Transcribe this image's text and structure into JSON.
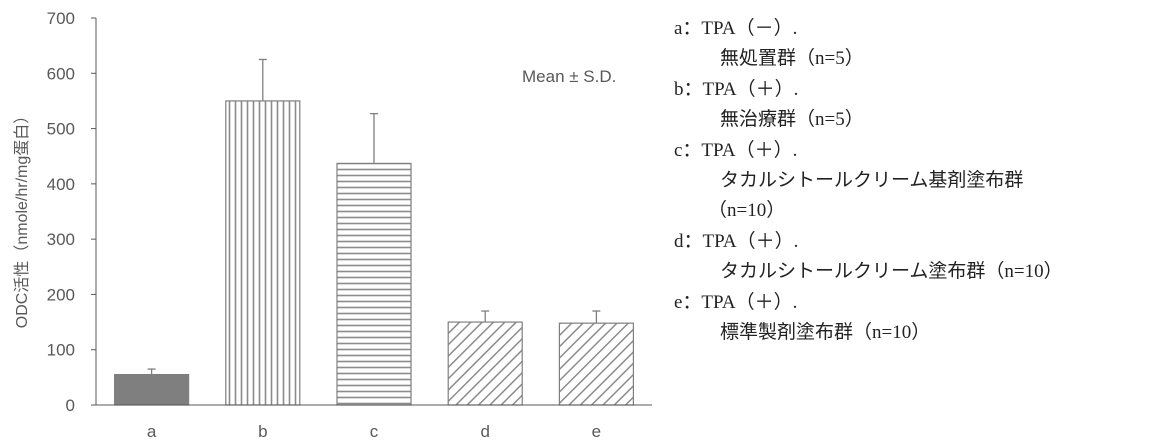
{
  "chart_data": {
    "type": "bar",
    "categories": [
      "a",
      "b",
      "c",
      "d",
      "e"
    ],
    "values": [
      55,
      550,
      437,
      150,
      148
    ],
    "errors": [
      10,
      75,
      90,
      20,
      22
    ],
    "ylabel": "ODC活性（nmole/hr/mg蛋白）",
    "ylim": [
      0,
      700
    ],
    "yticks": [
      0,
      100,
      200,
      300,
      400,
      500,
      600,
      700
    ],
    "annotation": "Mean ± S.D.",
    "grid": false,
    "bar_patterns": [
      "solid",
      "vertical-stripes",
      "horizontal-stripes",
      "diagonal-stripes",
      "diagonal-stripes"
    ],
    "colors": {
      "bar_fill": "#7f7f7f",
      "pattern_stroke": "#8c8c8c",
      "axis": "#595959"
    }
  },
  "legend": [
    {
      "label": "a：TPA（－）.",
      "desc": "無処置群（n=5）"
    },
    {
      "label": "b：TPA（＋）.",
      "desc": "無治療群（n=5）"
    },
    {
      "label": "c：TPA（＋）.",
      "desc": "タカルシトールクリーム基剤塗布群",
      "desc2": "（n=10）"
    },
    {
      "label": "d：TPA（＋）.",
      "desc": "タカルシトールクリーム塗布群（n=10）"
    },
    {
      "label": "e：TPA（＋）.",
      "desc": "標準製剤塗布群（n=10）"
    }
  ]
}
